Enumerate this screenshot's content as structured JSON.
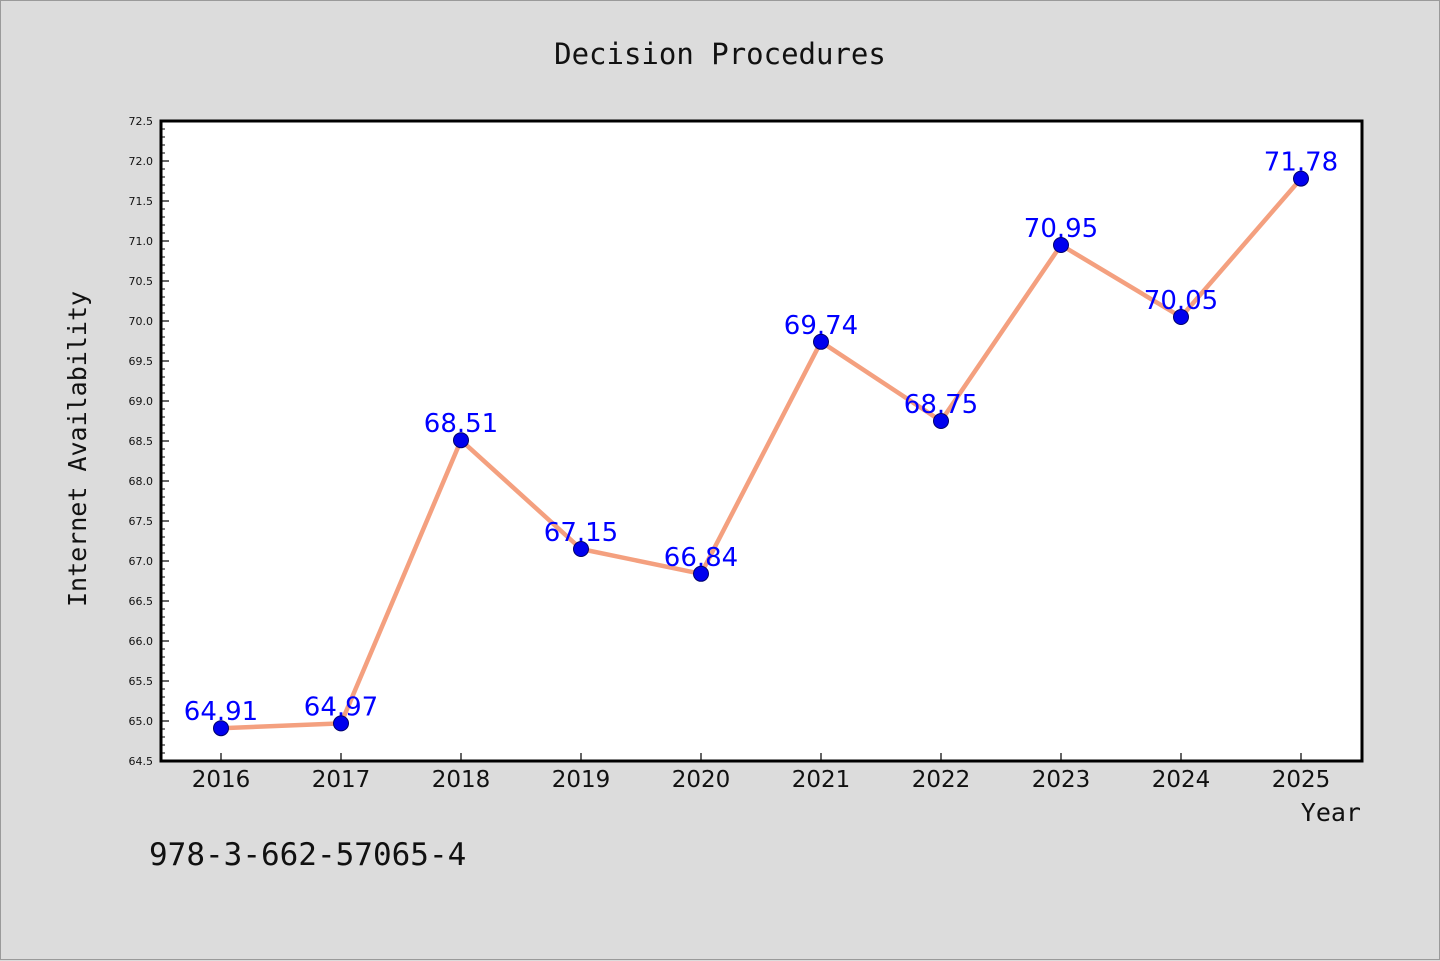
{
  "chart_data": {
    "type": "line",
    "title": "Decision Procedures",
    "xlabel": "Year",
    "ylabel": "Internet Availability",
    "categories": [
      "2016",
      "2017",
      "2018",
      "2019",
      "2020",
      "2021",
      "2022",
      "2023",
      "2024",
      "2025"
    ],
    "series": [
      {
        "values": [
          64.91,
          64.97,
          68.51,
          67.15,
          66.84,
          69.74,
          68.75,
          70.95,
          70.05,
          71.78
        ],
        "line_color": "#f4a07f",
        "marker_color": "#0000ee"
      }
    ],
    "data_labels": [
      "64.91",
      "64.97",
      "68.51",
      "67.15",
      "66.84",
      "69.74",
      "68.75",
      "70.95",
      "70.05",
      "71.78"
    ],
    "ylim": [
      64.5,
      72.5
    ],
    "yticks": [
      "64.5",
      "65.0",
      "65.5",
      "66.0",
      "66.5",
      "67.0",
      "67.5",
      "68.0",
      "68.5",
      "69.0",
      "69.5",
      "70.0",
      "70.5",
      "71.0",
      "71.5",
      "72.0",
      "72.5"
    ],
    "grid": false,
    "legend": "none",
    "label_color": "#0000ff",
    "plot_background": "#ffffff",
    "figure_background": "#dcdcdc"
  },
  "footer_text": "978-3-662-57065-4"
}
